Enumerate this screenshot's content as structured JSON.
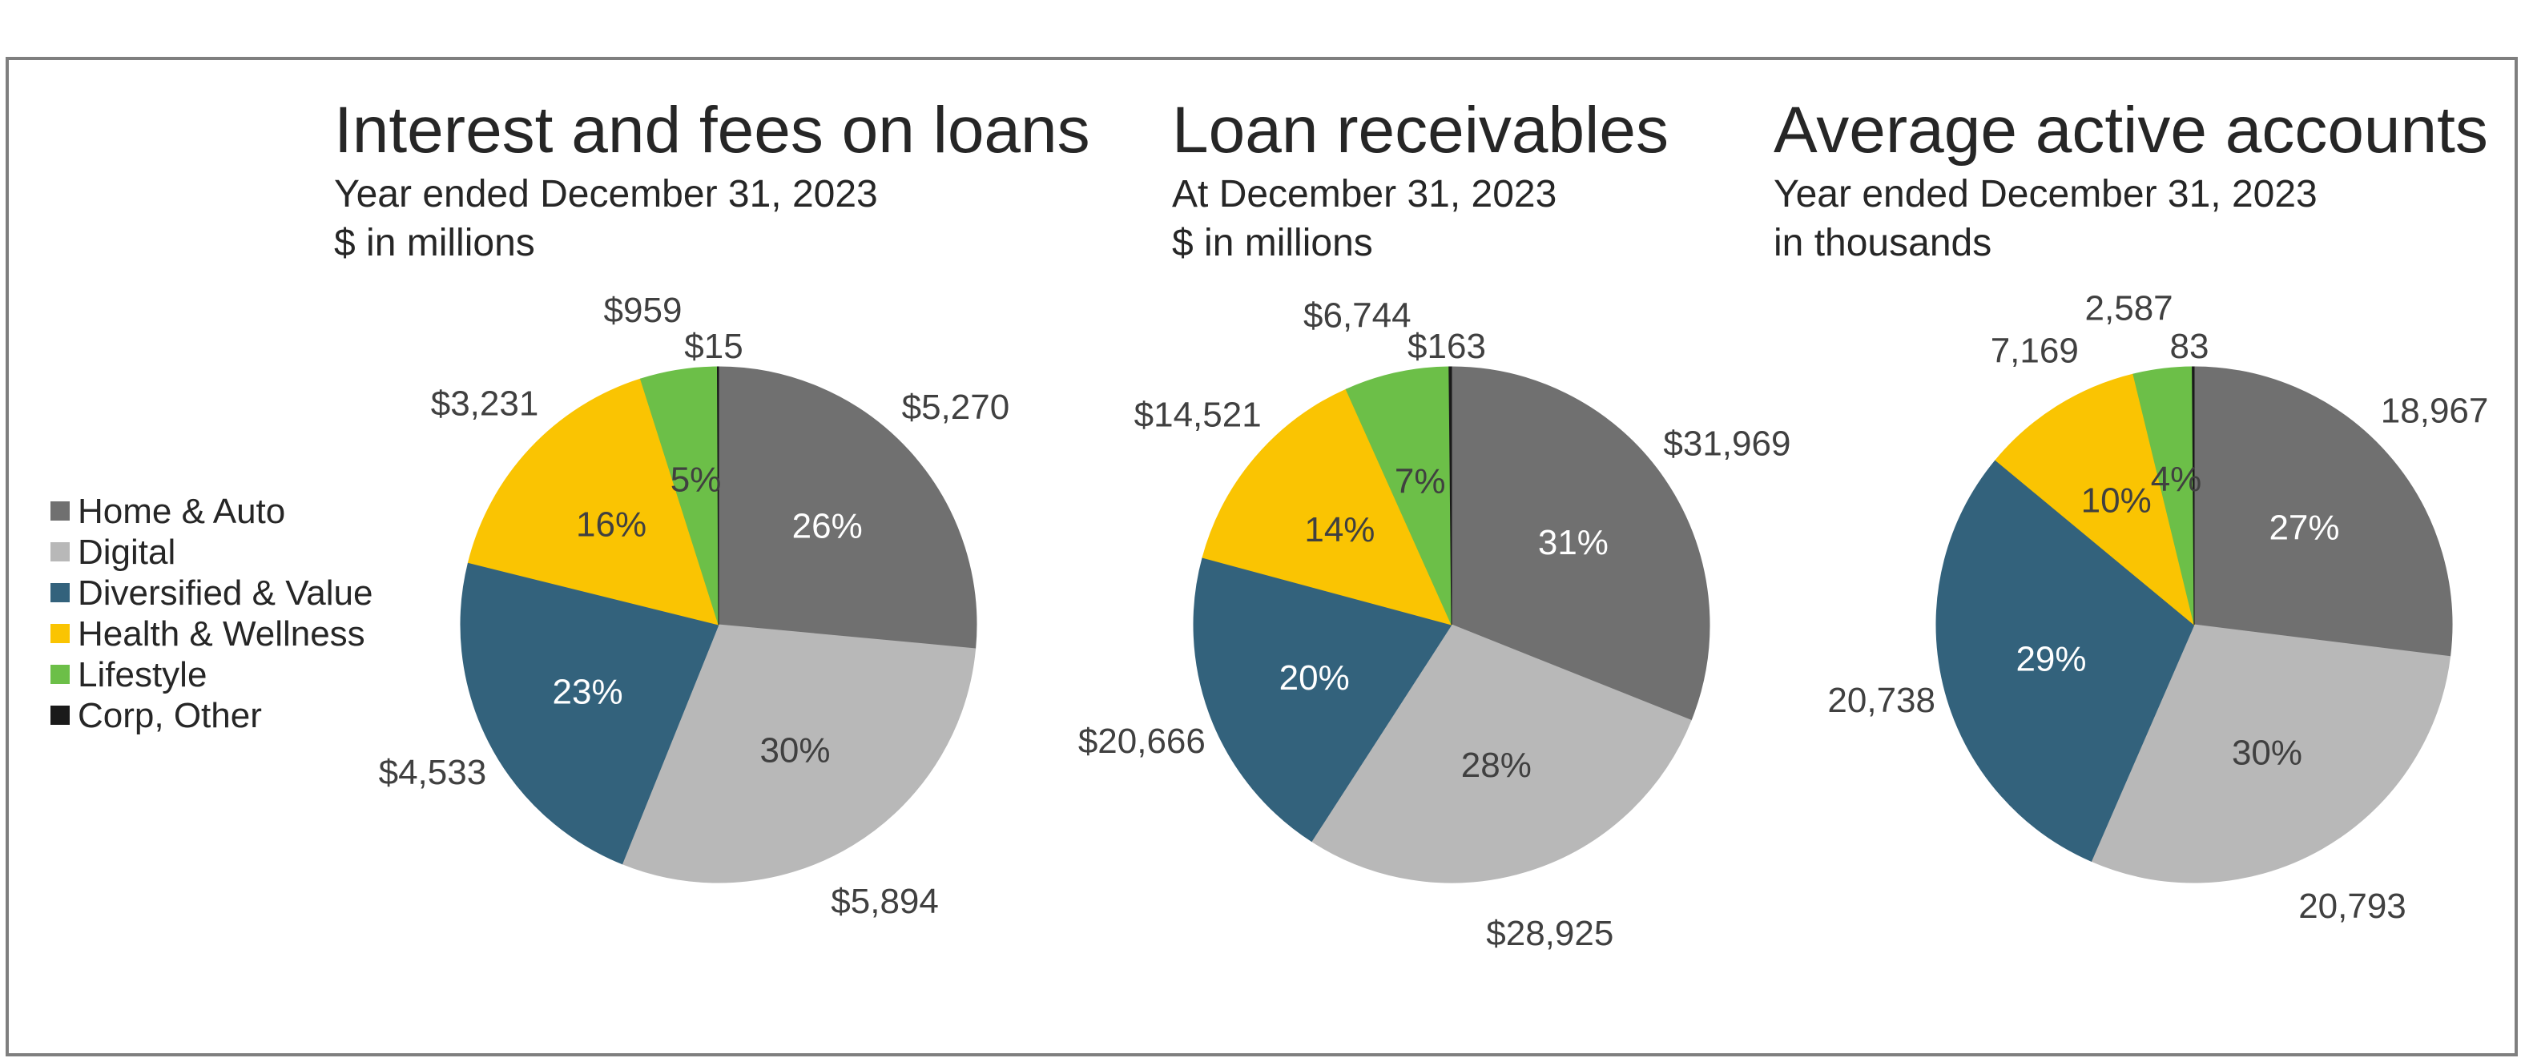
{
  "colors": {
    "home_auto": "#707070",
    "digital": "#b8b8b8",
    "diversified_value": "#33627c",
    "health_wellness": "#fac402",
    "lifestyle": "#6cbf48",
    "corp_other": "#1a1a1a"
  },
  "legend": {
    "placement": "left",
    "items": [
      "Home & Auto",
      "Digital",
      "Diversified & Value",
      "Health & Wellness",
      "Lifestyle",
      "Corp, Other"
    ]
  },
  "chart_data": [
    {
      "type": "pie",
      "title": "Interest and fees on loans",
      "subtitle_1": "Year ended December 31, 2023",
      "subtitle_2": "$ in millions",
      "categories": [
        "Home & Auto",
        "Digital",
        "Diversified & Value",
        "Health & Wellness",
        "Lifestyle",
        "Corp, Other"
      ],
      "values": [
        5270,
        5894,
        4533,
        3231,
        959,
        15
      ],
      "value_labels": [
        "$5,270",
        "$5,894",
        "$4,533",
        "$3,231",
        "$959",
        "$15"
      ],
      "percent_labels": [
        "26%",
        "30%",
        "23%",
        "16%",
        "5%",
        ""
      ]
    },
    {
      "type": "pie",
      "title": "Loan receivables",
      "subtitle_1": "At December 31, 2023",
      "subtitle_2": "$ in millions",
      "categories": [
        "Home & Auto",
        "Digital",
        "Diversified & Value",
        "Health & Wellness",
        "Lifestyle",
        "Corp, Other"
      ],
      "values": [
        31969,
        28925,
        20666,
        14521,
        6744,
        163
      ],
      "value_labels": [
        "$31,969",
        "$28,925",
        "$20,666",
        "$14,521",
        "$6,744",
        "$163"
      ],
      "percent_labels": [
        "31%",
        "28%",
        "20%",
        "14%",
        "7%",
        ""
      ]
    },
    {
      "type": "pie",
      "title": "Average active accounts",
      "subtitle_1": "Year ended December 31, 2023",
      "subtitle_2": "in thousands",
      "categories": [
        "Home & Auto",
        "Digital",
        "Diversified & Value",
        "Health & Wellness",
        "Lifestyle",
        "Corp, Other"
      ],
      "values": [
        18967,
        20793,
        20738,
        7169,
        2587,
        83
      ],
      "value_labels": [
        "18,967",
        "20,793",
        "20,738",
        "7,169",
        "2,587",
        "83"
      ],
      "percent_labels": [
        "27%",
        "30%",
        "29%",
        "10%",
        "4%",
        ""
      ]
    }
  ]
}
